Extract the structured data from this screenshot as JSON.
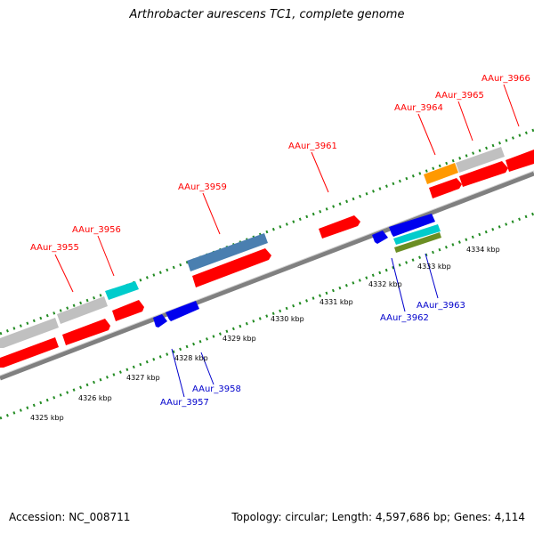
{
  "title": "Arthrobacter aurescens TC1, complete genome",
  "footer": {
    "accession": "Accession: NC_008711",
    "summary": "Topology: circular; Length: 4,597,686 bp; Genes: 4,114"
  },
  "scale_labels": [
    "4325 kbp",
    "4326 kbp",
    "4327 kbp",
    "4328 kbp",
    "4329 kbp",
    "4330 kbp",
    "4331 kbp",
    "4332 kbp",
    "4333 kbp",
    "4334 kbp"
  ],
  "gene_labels_top": [
    "AAur_3955",
    "AAur_3956",
    "AAur_3959",
    "AAur_3961",
    "AAur_3964",
    "AAur_3965",
    "AAur_3966"
  ],
  "gene_labels_bottom": [
    "AAur_3957",
    "AAur_3958",
    "AAur_3962",
    "AAur_3963"
  ],
  "colors": {
    "cds": "#ff0000",
    "gene": "#c0c0c0",
    "reverse_cds": "#0000ee",
    "highlight_cyan": "#00cccc",
    "steel_blue": "#4a7fb0",
    "orange": "#ff9900",
    "olive": "#6b8e23",
    "backbone": "#808080",
    "tick": "#228b22",
    "label_top": "#ff0000",
    "label_bottom": "#0000cc"
  }
}
